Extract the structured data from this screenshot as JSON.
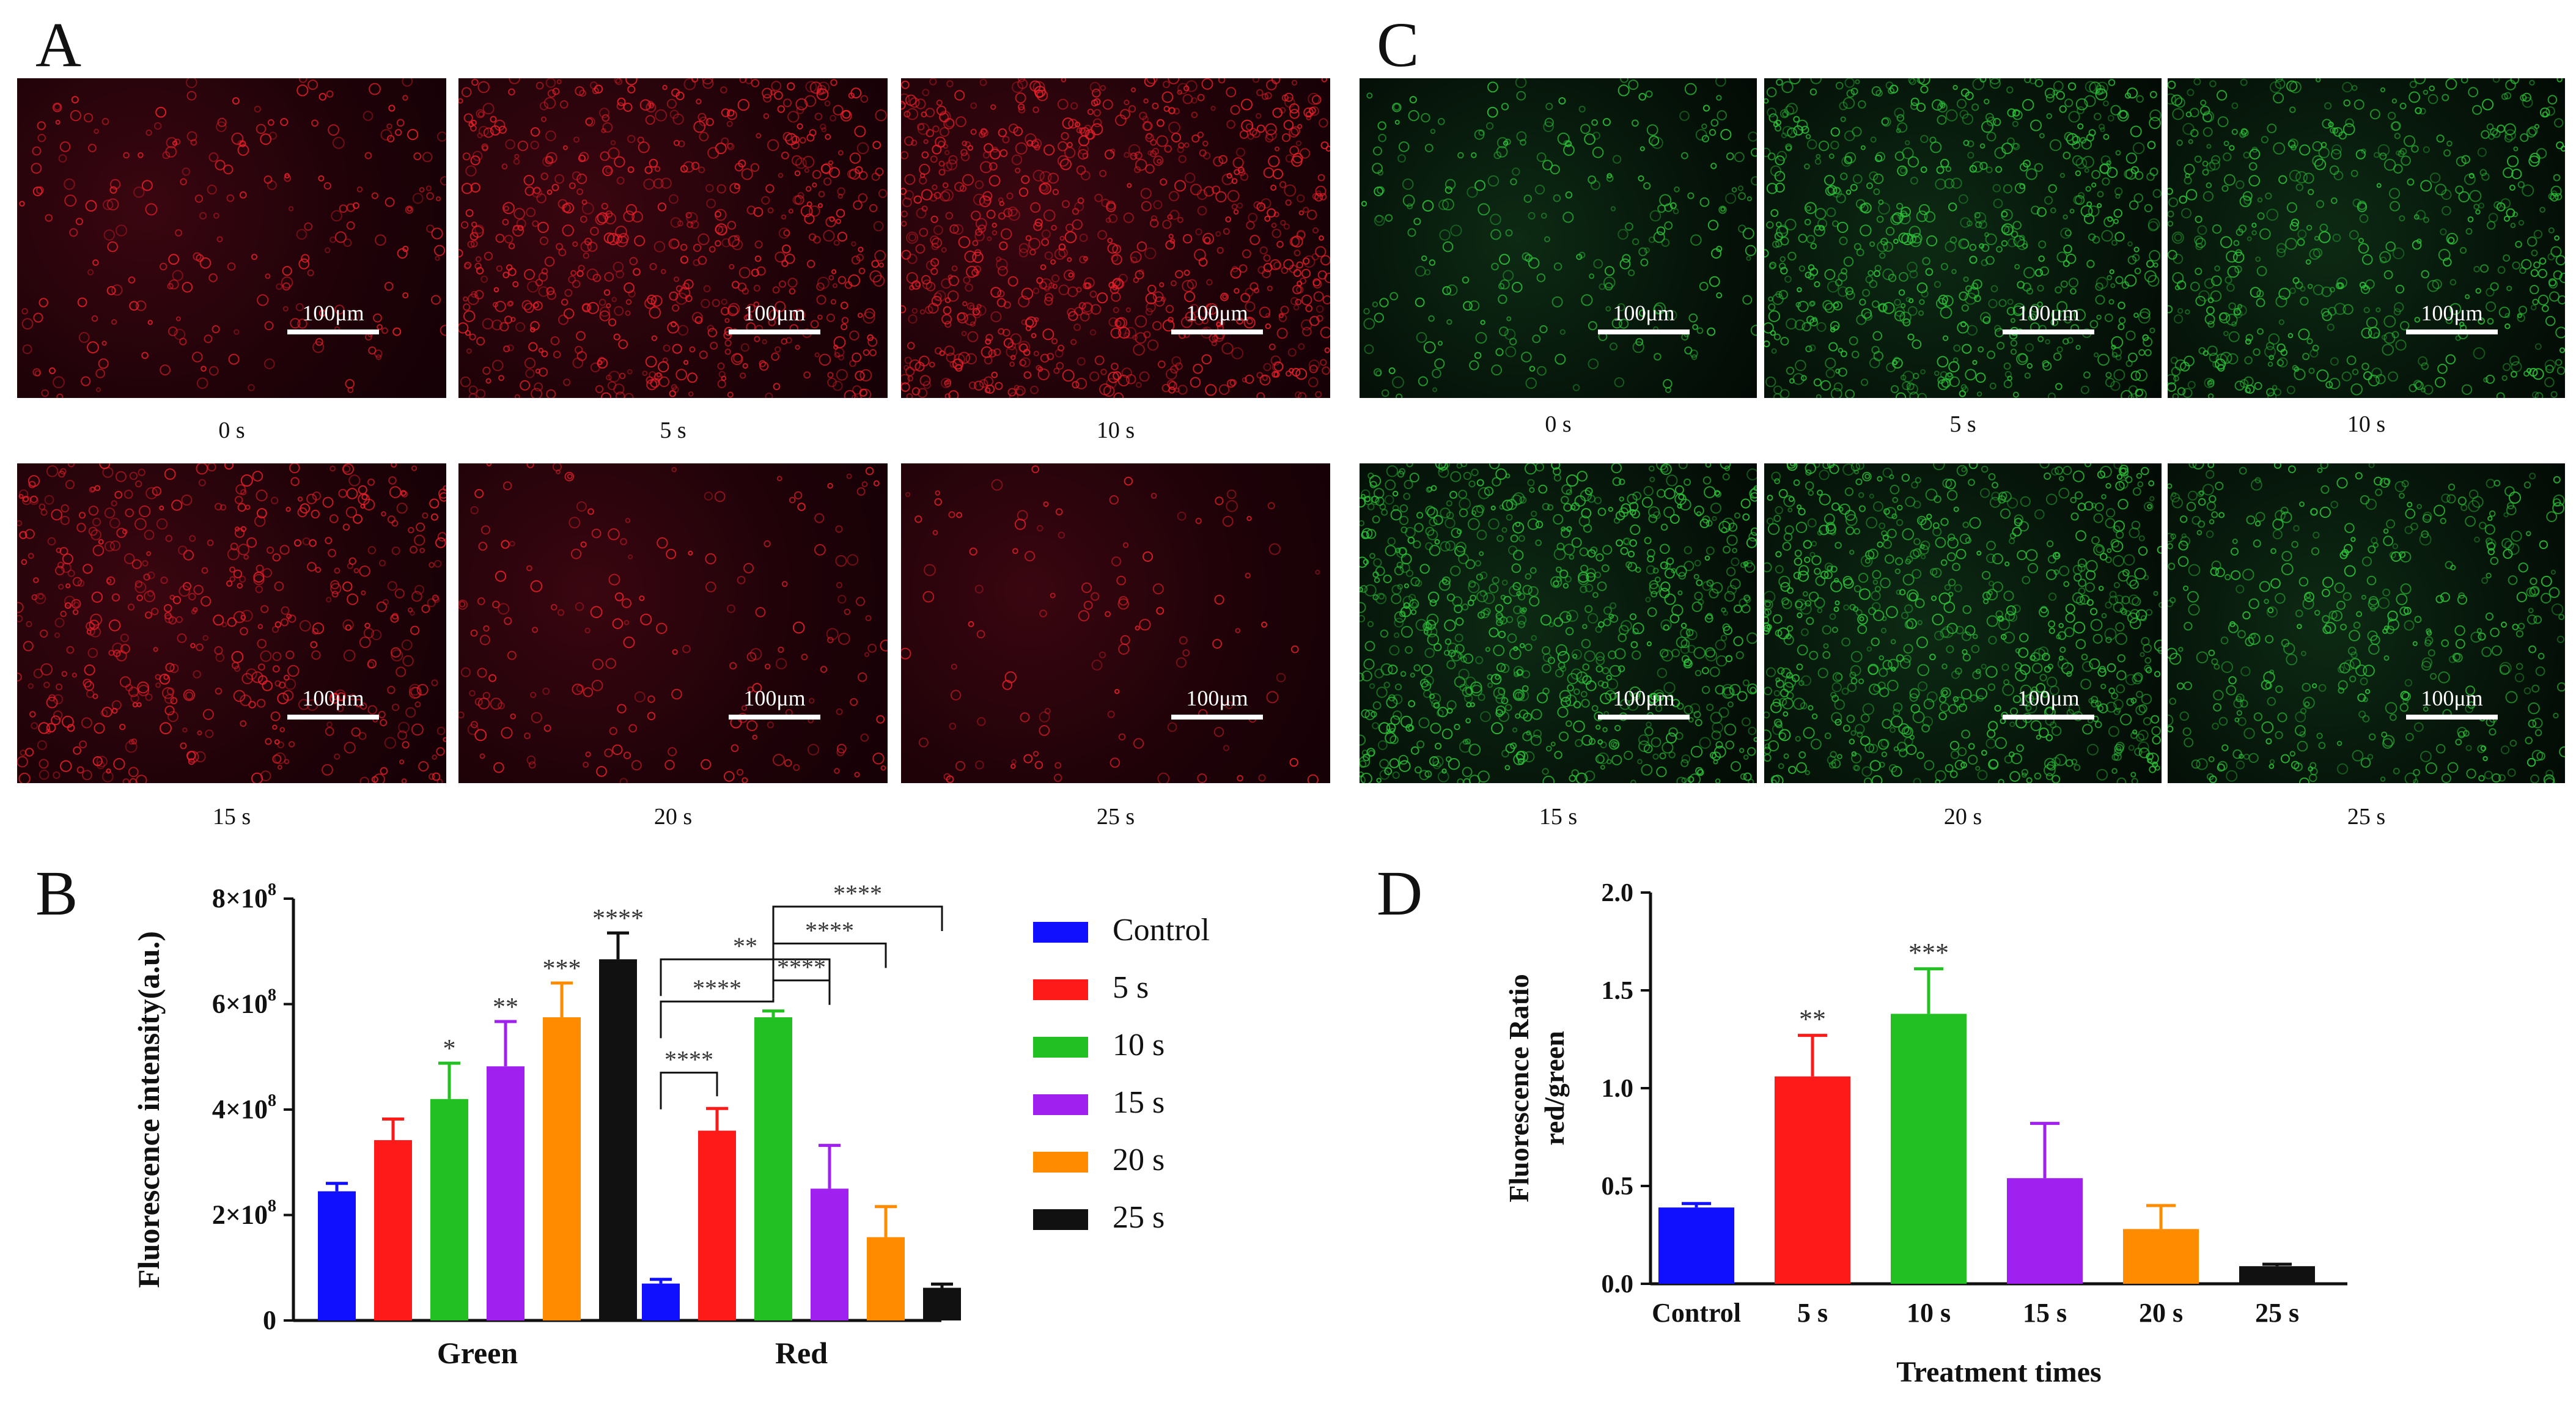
{
  "panels": {
    "a_letter": "A",
    "b_letter": "B",
    "c_letter": "C",
    "d_letter": "D"
  },
  "scale_bar": "100μm",
  "red_images": {
    "labels": [
      "0 s",
      "5 s",
      "10 s",
      "15 s",
      "20 s",
      "25 s"
    ],
    "densities": [
      0.25,
      0.7,
      0.9,
      0.55,
      0.2,
      0.12
    ],
    "color": "#e8202a"
  },
  "green_images": {
    "labels": [
      "0 s",
      "5 s",
      "10 s",
      "15 s",
      "20 s",
      "25 s"
    ],
    "densities": [
      0.3,
      0.75,
      0.6,
      0.9,
      0.85,
      0.5
    ],
    "color": "#2fc43a"
  },
  "chart_data": [
    {
      "type": "bar",
      "panel": "B",
      "categories": [
        "Green",
        "Red"
      ],
      "ylabel": "Fluorescence intensity(a.u.)",
      "ylim": [
        0,
        800000000
      ],
      "yticks": [
        {
          "value": 0,
          "label": "0"
        },
        {
          "value": 200000000,
          "label": "2×10",
          "exp": "8"
        },
        {
          "value": 400000000,
          "label": "4×10",
          "exp": "8"
        },
        {
          "value": 600000000,
          "label": "6×10",
          "exp": "8"
        },
        {
          "value": 800000000,
          "label": "8×10",
          "exp": "8"
        }
      ],
      "series": [
        {
          "name": "Control",
          "color": "#1010ff",
          "values": [
            245000000,
            70000000
          ],
          "errors": [
            15000000,
            8000000
          ]
        },
        {
          "name": "5 s",
          "color": "#ff1a1a",
          "values": [
            342000000,
            360000000
          ],
          "errors": [
            40000000,
            42000000
          ]
        },
        {
          "name": "10 s",
          "color": "#22c022",
          "values": [
            420000000,
            575000000
          ],
          "errors": [
            68000000,
            12000000
          ]
        },
        {
          "name": "15 s",
          "color": "#a020f0",
          "values": [
            482000000,
            250000000
          ],
          "errors": [
            85000000,
            82000000
          ]
        },
        {
          "name": "20 s",
          "color": "#ff8c00",
          "values": [
            575000000,
            158000000
          ],
          "errors": [
            65000000,
            58000000
          ]
        },
        {
          "name": "25 s",
          "color": "#111111",
          "values": [
            685000000,
            62000000
          ],
          "errors": [
            50000000,
            7000000
          ]
        }
      ],
      "bar_annotations": [
        {
          "group": 0,
          "series": 2,
          "text": "*"
        },
        {
          "group": 0,
          "series": 3,
          "text": "**"
        },
        {
          "group": 0,
          "series": 4,
          "text": "***"
        },
        {
          "group": 0,
          "series": 5,
          "text": "****"
        }
      ],
      "brackets": [
        {
          "group": 1,
          "from": 0,
          "to": 1,
          "level": 470000000,
          "text": "****"
        },
        {
          "group": 1,
          "from": 0,
          "to": 2,
          "level": 605000000,
          "text": "****"
        },
        {
          "group": 1,
          "from": 0,
          "to": 3,
          "level": 685000000,
          "text": "**"
        },
        {
          "group": 1,
          "from": 2,
          "to": 3,
          "level": 645000000,
          "text": "****"
        },
        {
          "group": 1,
          "from": 2,
          "to": 4,
          "level": 715000000,
          "text": "****"
        },
        {
          "group": 1,
          "from": 2,
          "to": 5,
          "level": 785000000,
          "text": "****"
        }
      ],
      "legend_position": "right"
    },
    {
      "type": "bar",
      "panel": "D",
      "categories": [
        "Control",
        "5 s",
        "10 s",
        "15 s",
        "20 s",
        "25 s"
      ],
      "values": [
        0.39,
        1.06,
        1.38,
        0.54,
        0.28,
        0.09
      ],
      "errors": [
        0.02,
        0.21,
        0.23,
        0.28,
        0.12,
        0.01
      ],
      "colors": [
        "#1010ff",
        "#ff1a1a",
        "#22c022",
        "#a020f0",
        "#ff8c00",
        "#111111"
      ],
      "annotations": [
        "",
        "**",
        "***",
        "",
        "",
        ""
      ],
      "xlabel": "Treatment times",
      "ylabel": [
        "Fluorescence Ratio",
        "red/green"
      ],
      "ylim": [
        0,
        2.0
      ],
      "yticks": [
        "0.0",
        "0.5",
        "1.0",
        "1.5",
        "2.0"
      ]
    }
  ]
}
